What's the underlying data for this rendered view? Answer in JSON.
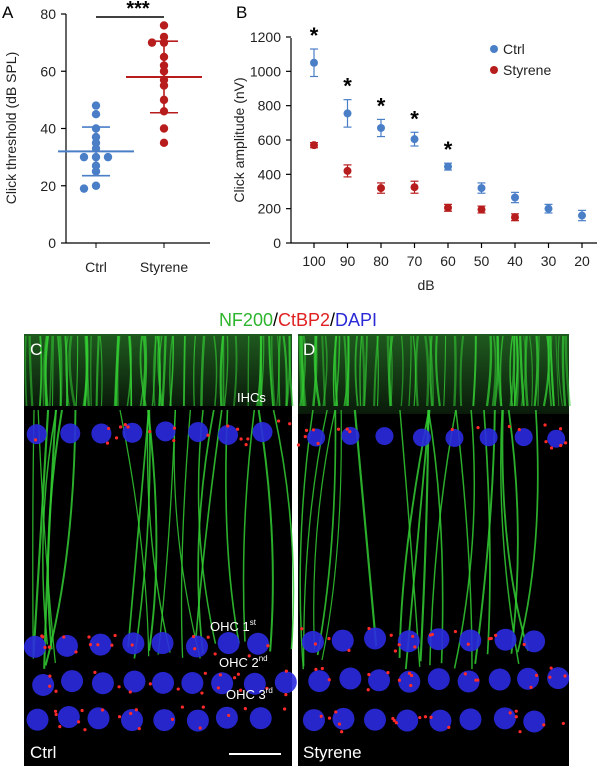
{
  "figure": {
    "stain_title": [
      {
        "text": "NF200",
        "color": "#2db52d"
      },
      {
        "text": "/",
        "color": "#000000"
      },
      {
        "text": "CtBP2",
        "color": "#e02020"
      },
      {
        "text": "/",
        "color": "#000000"
      },
      {
        "text": "DAPI",
        "color": "#2a2ad6"
      }
    ],
    "panel_labels": {
      "a": "A",
      "b": "B",
      "c": "C",
      "d": "D"
    },
    "micrographs": {
      "ctrl": {
        "condition_label": "Ctrl",
        "row_labels": [
          {
            "name": "ihcs",
            "text": "IHCs"
          },
          {
            "name": "ohc1",
            "text": "OHC 1",
            "sup": "st"
          },
          {
            "name": "ohc2",
            "text": "OHC 2",
            "sup": "nd"
          },
          {
            "name": "ohc3",
            "text": "OHC 3",
            "sup": "rd"
          }
        ]
      },
      "styrene": {
        "condition_label": "Styrene"
      }
    },
    "colors": {
      "ctrl": "#4a7fc8",
      "styrene": "#b81d1d",
      "nf200": "#33cc33",
      "ctbp2": "#ff2a2a",
      "dapi": "#2a2ae0"
    }
  },
  "chart_data": [
    {
      "panel": "A",
      "type": "scatter",
      "ylabel": "Click threshold (dB SPL)",
      "xlabel": "",
      "categories": [
        "Ctrl",
        "Styrene"
      ],
      "ylim": [
        0,
        80
      ],
      "yticks": [
        0,
        20,
        40,
        60,
        80
      ],
      "significance": "***",
      "series": [
        {
          "name": "Ctrl",
          "color": "#4a7fc8",
          "values": [
            48,
            45,
            40,
            37,
            35,
            33,
            30,
            30,
            30,
            27,
            25,
            20,
            19
          ],
          "mean": 32,
          "sd": 8.5
        },
        {
          "name": "Styrene",
          "color": "#b81d1d",
          "values": [
            76,
            72,
            70,
            70,
            65,
            62,
            60,
            57,
            55,
            50,
            46,
            40,
            35
          ],
          "mean": 58,
          "sd": 12.5
        }
      ]
    },
    {
      "panel": "B",
      "type": "scatter",
      "xlabel": "dB",
      "ylabel": "Click amplitude (nV)",
      "x": [
        100,
        90,
        80,
        70,
        60,
        50,
        40,
        30,
        20
      ],
      "ylim": [
        0,
        1200
      ],
      "yticks": [
        0,
        200,
        400,
        600,
        800,
        1000,
        1200
      ],
      "legend": "top-right",
      "significance_marks": [
        100,
        90,
        80,
        70,
        60
      ],
      "significance_symbol": "*",
      "series": [
        {
          "name": "Ctrl",
          "color": "#4a7fc8",
          "values": [
            1050,
            755,
            670,
            605,
            445,
            320,
            265,
            200,
            160
          ],
          "errors": [
            80,
            80,
            50,
            40,
            20,
            30,
            30,
            25,
            30
          ]
        },
        {
          "name": "Styrene",
          "color": "#b81d1d",
          "values": [
            570,
            420,
            320,
            325,
            205,
            195,
            150,
            null,
            null
          ],
          "errors": [
            15,
            35,
            30,
            35,
            20,
            20,
            20,
            null,
            null
          ]
        }
      ]
    }
  ]
}
